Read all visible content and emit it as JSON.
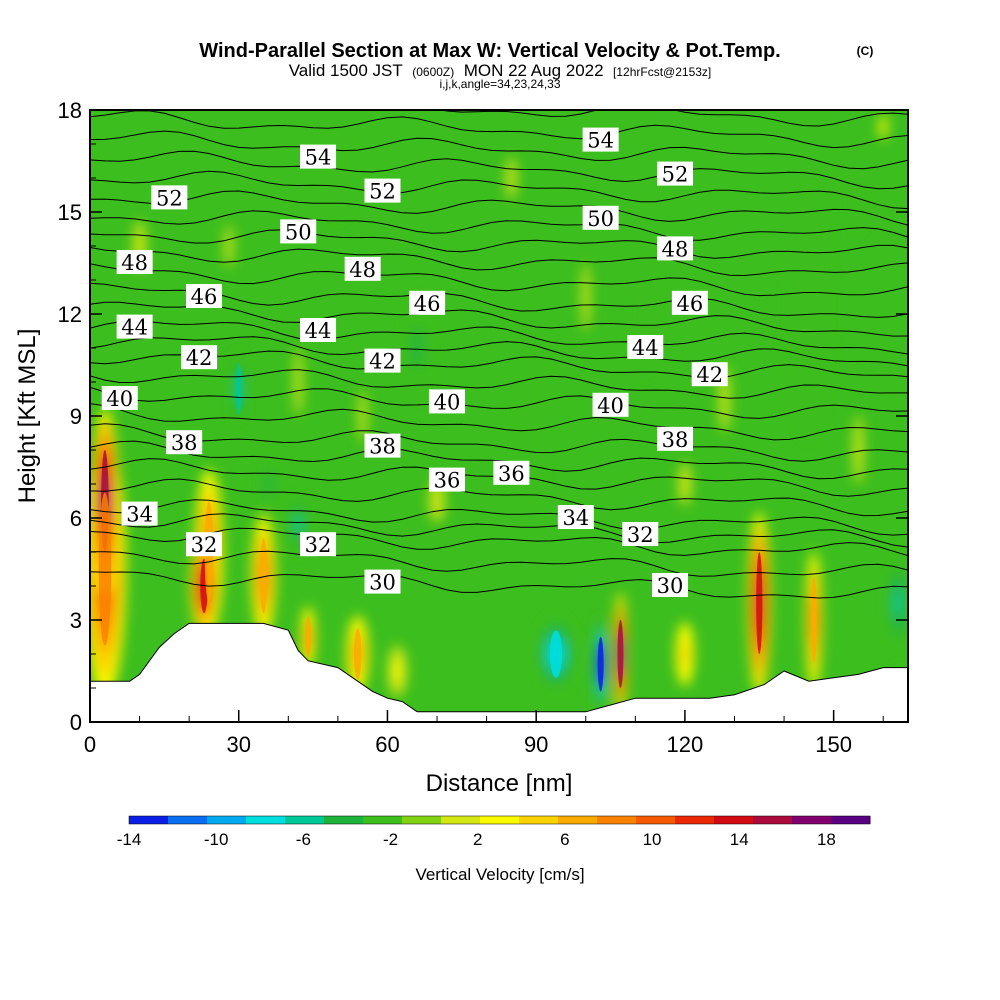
{
  "chart_data": {
    "type": "heatmap",
    "title": "Wind-Parallel Section at Max W: Vertical Velocity & Pot.Temp.",
    "copyright": "(C)",
    "subtitle_main": "Valid 1500 JST",
    "subtitle_utc": "(0600Z)",
    "subtitle_date": "MON 22 Aug 2022",
    "subtitle_fcst": "[12hrFcst@2153z]",
    "subtitle2": "i,j,k,angle=34,23,24,33",
    "xlabel": "Distance [nm]",
    "ylabel": "Height [Kft MSL]",
    "xlim": [
      0,
      165
    ],
    "ylim": [
      0,
      18
    ],
    "x_ticks": [
      0,
      30,
      60,
      90,
      120,
      150
    ],
    "y_ticks": [
      0,
      3,
      6,
      9,
      12,
      15,
      18
    ],
    "colorbar": {
      "label": "Vertical Velocity [cm/s]",
      "range": [
        -14,
        20
      ],
      "tick_values": [
        -14,
        -10,
        -6,
        -2,
        2,
        6,
        10,
        14,
        18
      ],
      "tick_labels": [
        "-14",
        "-10",
        "-6",
        "-2",
        "2",
        "6",
        "10",
        "14",
        "18"
      ],
      "colors": [
        "#0a1ee6",
        "#0a6ef0",
        "#00aaf0",
        "#00dede",
        "#00c896",
        "#1eb43c",
        "#3cbe1e",
        "#82d214",
        "#d2e614",
        "#fafa00",
        "#fad200",
        "#faaa00",
        "#fa8200",
        "#f55a00",
        "#eb2800",
        "#d20a14",
        "#aa0a3c",
        "#82006e",
        "#5a0082"
      ]
    },
    "terrain": [
      [
        0,
        1.2
      ],
      [
        8,
        1.2
      ],
      [
        10,
        1.4
      ],
      [
        14,
        2.2
      ],
      [
        17,
        2.6
      ],
      [
        20,
        2.9
      ],
      [
        28,
        2.9
      ],
      [
        35,
        2.9
      ],
      [
        40,
        2.7
      ],
      [
        42,
        2.1
      ],
      [
        44,
        1.8
      ],
      [
        50,
        1.6
      ],
      [
        53,
        1.3
      ],
      [
        57,
        0.9
      ],
      [
        60,
        0.7
      ],
      [
        63,
        0.6
      ],
      [
        66,
        0.3
      ],
      [
        70,
        0.3
      ],
      [
        80,
        0.3
      ],
      [
        100,
        0.3
      ],
      [
        105,
        0.5
      ],
      [
        110,
        0.7
      ],
      [
        125,
        0.7
      ],
      [
        130,
        0.8
      ],
      [
        132,
        0.9
      ],
      [
        136,
        1.1
      ],
      [
        140,
        1.5
      ],
      [
        145,
        1.2
      ],
      [
        150,
        1.3
      ],
      [
        155,
        1.4
      ],
      [
        160,
        1.6
      ],
      [
        165,
        1.6
      ]
    ],
    "theta_contour_labels": [
      {
        "text": "54",
        "x": 46,
        "y": 16.6
      },
      {
        "text": "54",
        "x": 103,
        "y": 17.1
      },
      {
        "text": "52",
        "x": 16,
        "y": 15.4
      },
      {
        "text": "52",
        "x": 59,
        "y": 15.6
      },
      {
        "text": "52",
        "x": 118,
        "y": 16.1
      },
      {
        "text": "50",
        "x": 42,
        "y": 14.4
      },
      {
        "text": "50",
        "x": 103,
        "y": 14.8
      },
      {
        "text": "48",
        "x": 9,
        "y": 13.5
      },
      {
        "text": "48",
        "x": 55,
        "y": 13.3
      },
      {
        "text": "48",
        "x": 118,
        "y": 13.9
      },
      {
        "text": "46",
        "x": 23,
        "y": 12.5
      },
      {
        "text": "46",
        "x": 68,
        "y": 12.3
      },
      {
        "text": "46",
        "x": 121,
        "y": 12.3
      },
      {
        "text": "44",
        "x": 9,
        "y": 11.6
      },
      {
        "text": "44",
        "x": 46,
        "y": 11.5
      },
      {
        "text": "44",
        "x": 112,
        "y": 11.0
      },
      {
        "text": "42",
        "x": 22,
        "y": 10.7
      },
      {
        "text": "42",
        "x": 59,
        "y": 10.6
      },
      {
        "text": "42",
        "x": 125,
        "y": 10.2
      },
      {
        "text": "40",
        "x": 6,
        "y": 9.5
      },
      {
        "text": "40",
        "x": 72,
        "y": 9.4
      },
      {
        "text": "40",
        "x": 105,
        "y": 9.3
      },
      {
        "text": "38",
        "x": 19,
        "y": 8.2
      },
      {
        "text": "38",
        "x": 59,
        "y": 8.1
      },
      {
        "text": "38",
        "x": 118,
        "y": 8.3
      },
      {
        "text": "36",
        "x": 72,
        "y": 7.1
      },
      {
        "text": "36",
        "x": 85,
        "y": 7.3
      },
      {
        "text": "34",
        "x": 10,
        "y": 6.1
      },
      {
        "text": "34",
        "x": 98,
        "y": 6.0
      },
      {
        "text": "32",
        "x": 23,
        "y": 5.2
      },
      {
        "text": "32",
        "x": 46,
        "y": 5.2
      },
      {
        "text": "32",
        "x": 111,
        "y": 5.5
      },
      {
        "text": "30",
        "x": 59,
        "y": 4.1
      },
      {
        "text": "30",
        "x": 117,
        "y": 4.0
      }
    ],
    "w_features": [
      {
        "x": 3,
        "y": 6.5,
        "rx": 3,
        "ry": 3.0,
        "w": 16
      },
      {
        "x": 3,
        "y": 4.5,
        "rx": 5,
        "ry": 4.5,
        "w": 9
      },
      {
        "x": 23,
        "y": 4.0,
        "rx": 3,
        "ry": 1.6,
        "w": 14
      },
      {
        "x": 24,
        "y": 5.0,
        "rx": 3.5,
        "ry": 3.0,
        "w": 7
      },
      {
        "x": 35,
        "y": 4.3,
        "rx": 3,
        "ry": 2.2,
        "w": 7
      },
      {
        "x": 44,
        "y": 2.5,
        "rx": 2,
        "ry": 1.2,
        "w": 6
      },
      {
        "x": 54,
        "y": 2.0,
        "rx": 3,
        "ry": 1.5,
        "w": 6
      },
      {
        "x": 62,
        "y": 1.5,
        "rx": 3,
        "ry": 1.2,
        "w": 3
      },
      {
        "x": 107,
        "y": 2.0,
        "rx": 1.5,
        "ry": 2.0,
        "w": 16
      },
      {
        "x": 120,
        "y": 2.0,
        "rx": 3,
        "ry": 1.5,
        "w": 4
      },
      {
        "x": 135,
        "y": 3.5,
        "rx": 2.5,
        "ry": 3.0,
        "w": 14
      },
      {
        "x": 146,
        "y": 3.0,
        "rx": 2,
        "ry": 2.5,
        "w": 7
      },
      {
        "x": 103,
        "y": 1.7,
        "rx": 1.5,
        "ry": 1.6,
        "w": -14
      },
      {
        "x": 94,
        "y": 2.0,
        "rx": 5,
        "ry": 1.4,
        "w": -7
      },
      {
        "x": 30,
        "y": 9.8,
        "rx": 1.8,
        "ry": 1.5,
        "w": -6
      },
      {
        "x": 42,
        "y": 5.8,
        "rx": 2.5,
        "ry": 1.2,
        "w": -5
      },
      {
        "x": 36,
        "y": 7.0,
        "rx": 2,
        "ry": 1.5,
        "w": -4
      },
      {
        "x": 66,
        "y": 11.0,
        "rx": 4,
        "ry": 2.5,
        "w": -3
      },
      {
        "x": 90,
        "y": 9.0,
        "rx": 5,
        "ry": 3.0,
        "w": -2.5
      },
      {
        "x": 112,
        "y": 12.0,
        "rx": 4,
        "ry": 3.0,
        "w": -2.5
      },
      {
        "x": 50,
        "y": 16.0,
        "rx": 5,
        "ry": 2.0,
        "w": -2.5
      },
      {
        "x": 145,
        "y": 12.0,
        "rx": 7,
        "ry": 6.0,
        "w": -2.5
      },
      {
        "x": 163,
        "y": 3.5,
        "rx": 3,
        "ry": 2.0,
        "w": -5
      },
      {
        "x": 155,
        "y": 15,
        "rx": 4,
        "ry": 2.5,
        "w": -2
      },
      {
        "x": 85,
        "y": 16.0,
        "rx": 4,
        "ry": 2.5,
        "w": 1.5
      },
      {
        "x": 42,
        "y": 10.0,
        "rx": 3,
        "ry": 4.0,
        "w": 1.5
      },
      {
        "x": 55,
        "y": 9.0,
        "rx": 3,
        "ry": 3.0,
        "w": 1
      },
      {
        "x": 10,
        "y": 14.0,
        "rx": 5,
        "ry": 3.0,
        "w": 1.5
      },
      {
        "x": 128,
        "y": 9.5,
        "rx": 4,
        "ry": 4.0,
        "w": 1
      },
      {
        "x": 155,
        "y": 8.0,
        "rx": 4,
        "ry": 4.0,
        "w": 1.5
      },
      {
        "x": 70,
        "y": 6.5,
        "rx": 6,
        "ry": 2.5,
        "w": 1
      },
      {
        "x": 120,
        "y": 7.0,
        "rx": 5,
        "ry": 2.5,
        "w": 1.2
      },
      {
        "x": 28,
        "y": 14.0,
        "rx": 3,
        "ry": 2.5,
        "w": 1.2
      },
      {
        "x": 100,
        "y": 12.5,
        "rx": 3,
        "ry": 4.0,
        "w": 1
      },
      {
        "x": 160,
        "y": 17.5,
        "rx": 3,
        "ry": 1.5,
        "w": 2
      }
    ]
  }
}
